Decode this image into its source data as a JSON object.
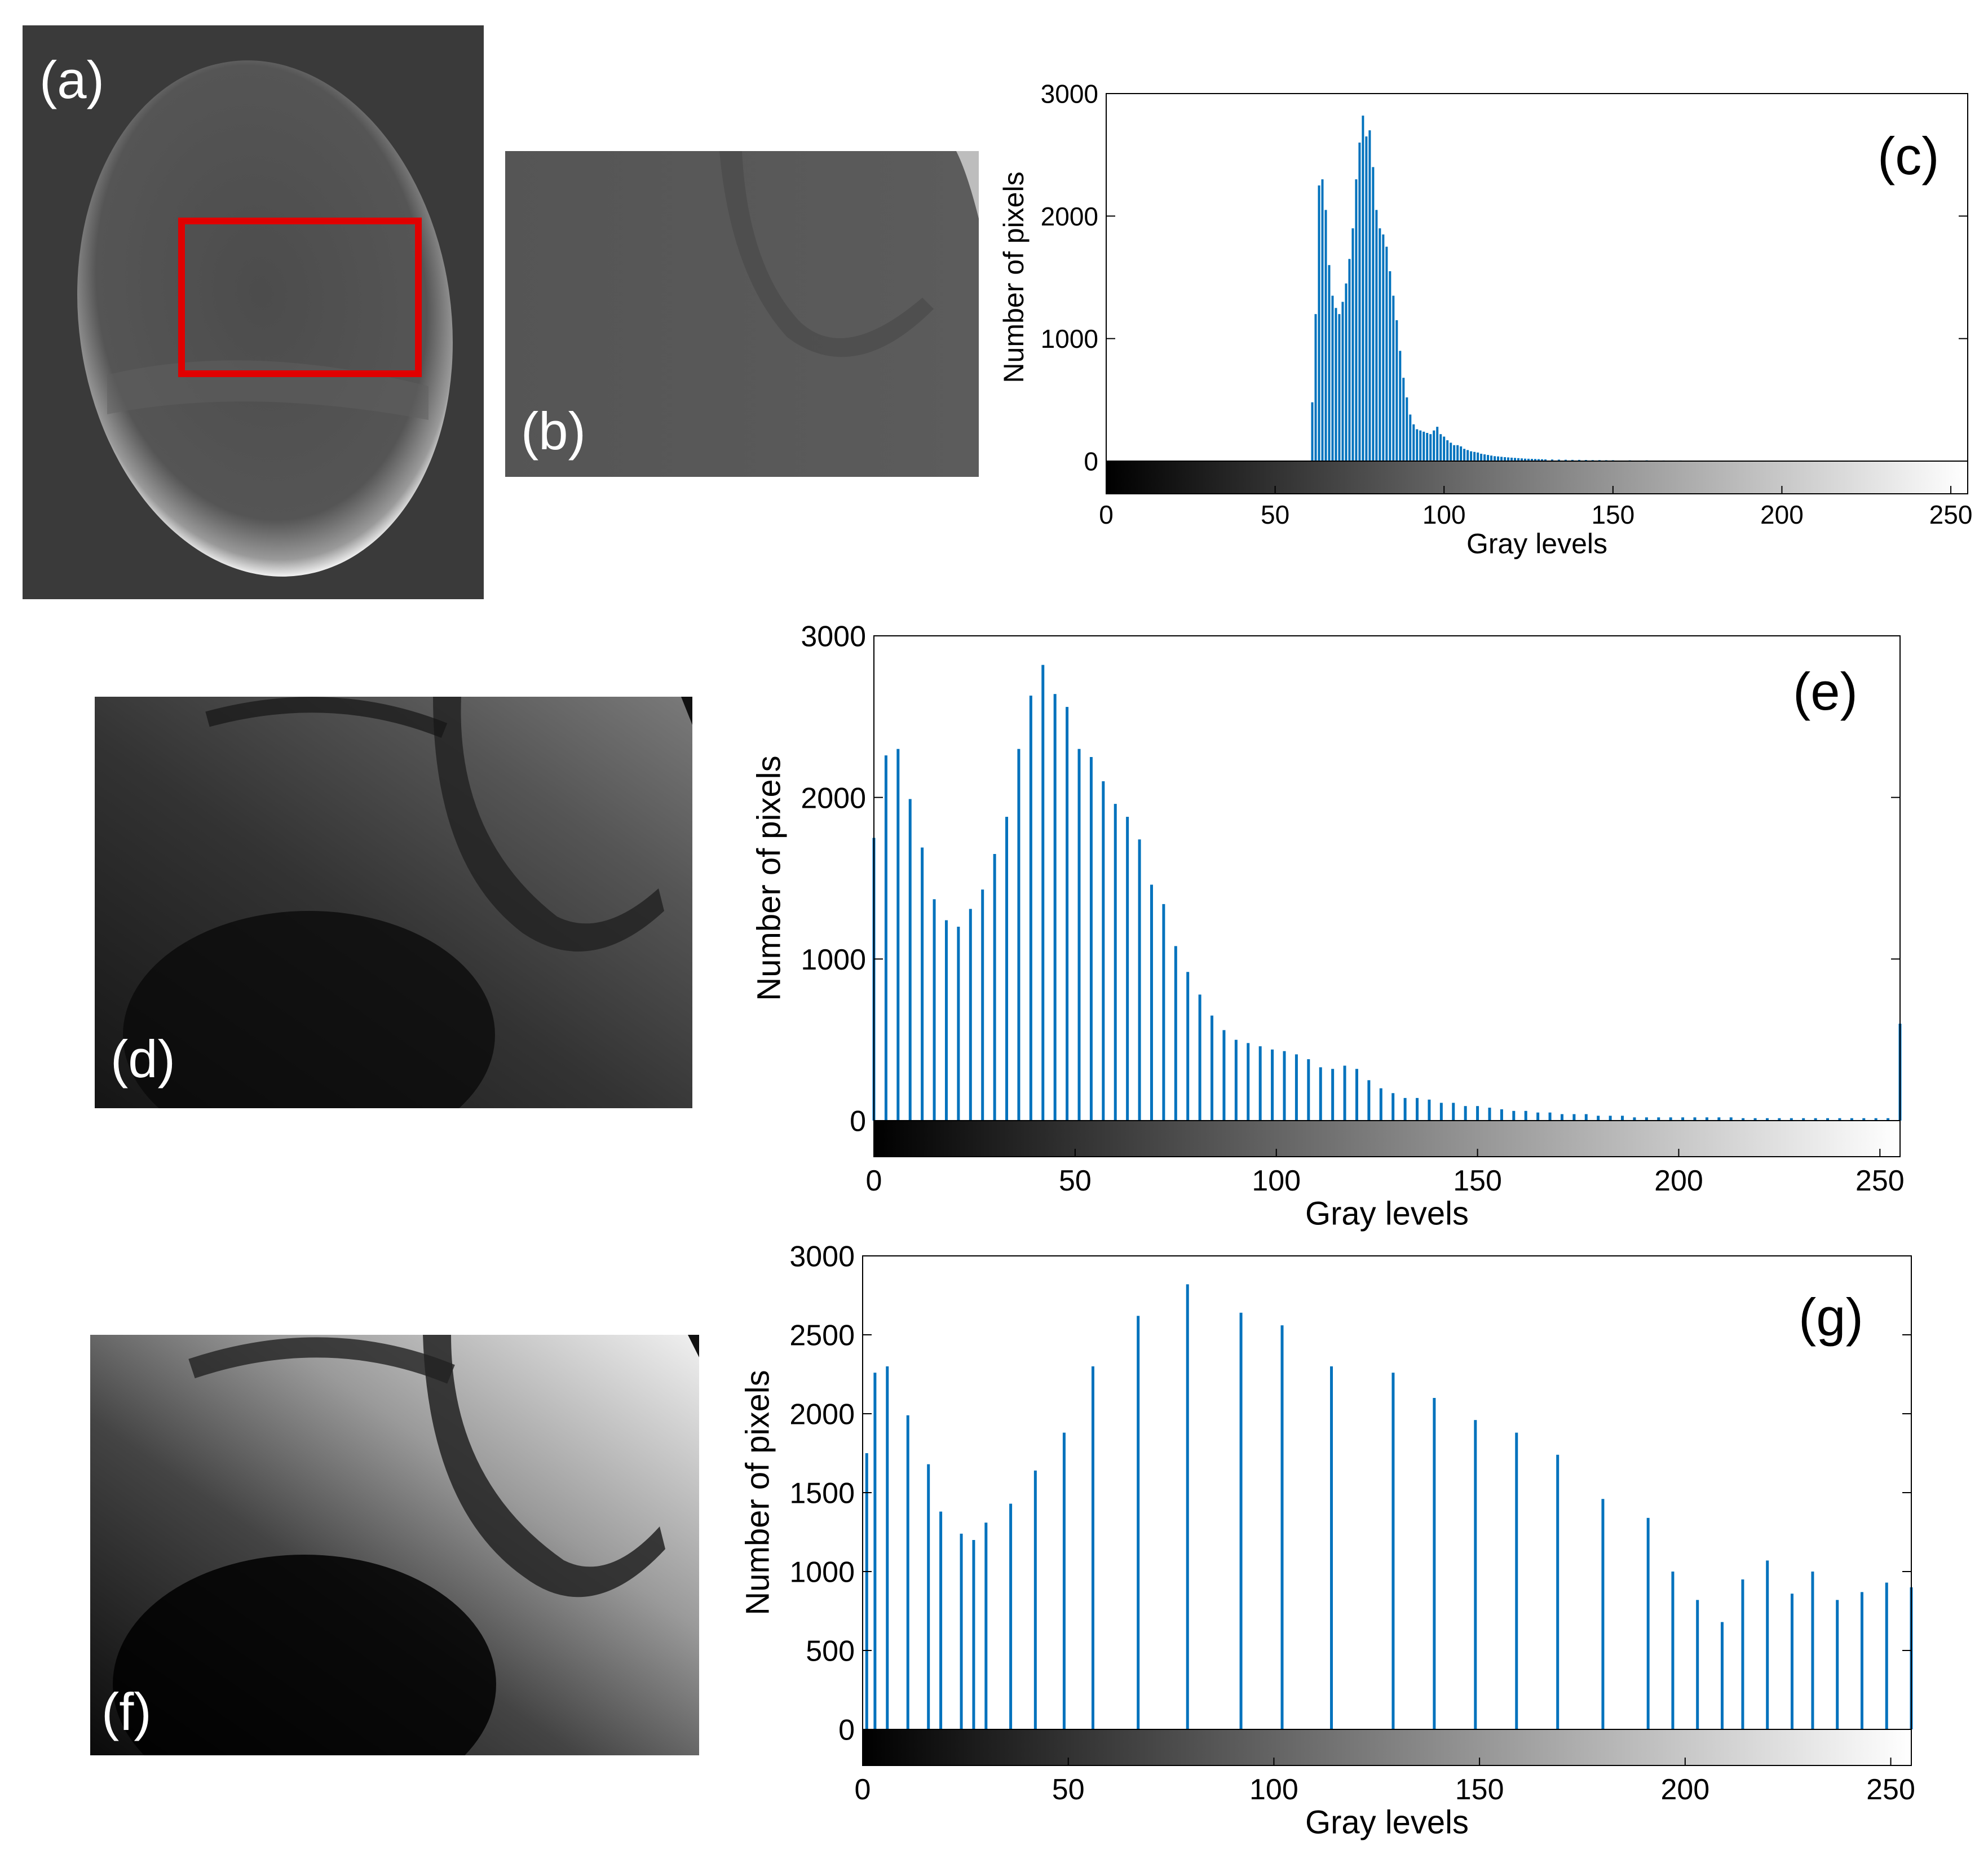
{
  "figure": {
    "panel_labels": {
      "a": "(a)",
      "b": "(b)",
      "c": "(c)",
      "d": "(d)",
      "e": "(e)",
      "f": "(f)",
      "g": "(g)"
    },
    "colors": {
      "bar": "#0072BD",
      "roi_box": "#e00000",
      "axis": "#000000"
    }
  },
  "chart_data": [
    {
      "panel": "(c)",
      "type": "bar",
      "xlabel": "Gray levels",
      "ylabel": "Number of pixels",
      "xlim": [
        0,
        255
      ],
      "ylim": [
        0,
        3000
      ],
      "xticks": [
        0,
        50,
        100,
        150,
        200,
        250
      ],
      "yticks": [
        0,
        1000,
        2000,
        3000
      ],
      "colorbar": "grayscale 0-255 below x-axis",
      "series": [
        {
          "x": [
            61,
            62,
            63,
            64,
            65,
            66,
            67,
            68,
            69,
            70,
            71,
            72,
            73,
            74,
            75,
            76,
            77,
            78,
            79,
            80,
            81,
            82,
            83,
            84,
            85,
            86,
            87,
            88,
            89,
            90,
            91,
            92,
            93,
            94,
            95,
            96,
            97,
            98,
            99,
            100,
            101,
            102,
            103,
            104,
            105,
            106,
            107,
            108,
            109,
            110,
            111,
            112,
            113,
            114,
            115,
            116,
            117,
            118,
            119,
            120,
            121,
            122,
            123,
            124,
            125,
            126,
            127,
            128,
            129,
            130,
            132,
            134,
            136,
            138,
            140,
            142,
            144,
            146,
            148,
            150,
            155,
            160,
            165,
            170,
            175,
            180,
            185,
            190,
            195
          ],
          "values": [
            480,
            1200,
            2250,
            2300,
            2050,
            1600,
            1350,
            1250,
            1200,
            1300,
            1450,
            1650,
            1900,
            2300,
            2600,
            2820,
            2650,
            2700,
            2400,
            2050,
            1900,
            1850,
            1750,
            1550,
            1350,
            1150,
            900,
            680,
            520,
            380,
            300,
            260,
            250,
            240,
            230,
            220,
            250,
            280,
            220,
            200,
            170,
            150,
            130,
            130,
            120,
            100,
            90,
            80,
            75,
            70,
            60,
            55,
            50,
            45,
            40,
            38,
            35,
            32,
            30,
            28,
            26,
            24,
            22,
            20,
            19,
            18,
            17,
            16,
            15,
            14,
            13,
            12,
            11,
            10,
            10,
            9,
            8,
            8,
            7,
            7,
            6,
            6,
            5,
            5,
            4,
            4,
            3,
            3,
            3
          ]
        }
      ]
    },
    {
      "panel": "(e)",
      "type": "bar",
      "xlabel": "Gray levels",
      "ylabel": "Number of pixels",
      "xlim": [
        0,
        255
      ],
      "ylim": [
        0,
        3000
      ],
      "xticks": [
        0,
        50,
        100,
        150,
        200,
        250
      ],
      "yticks": [
        0,
        1000,
        2000,
        3000
      ],
      "colorbar": "grayscale 0-255 below x-axis",
      "series": [
        {
          "x": [
            0,
            3,
            6,
            9,
            12,
            15,
            18,
            21,
            24,
            27,
            30,
            33,
            36,
            39,
            42,
            45,
            48,
            51,
            54,
            57,
            60,
            63,
            66,
            69,
            72,
            75,
            78,
            81,
            84,
            87,
            90,
            93,
            96,
            99,
            102,
            105,
            108,
            111,
            114,
            117,
            120,
            123,
            126,
            129,
            132,
            135,
            138,
            141,
            144,
            147,
            150,
            153,
            156,
            159,
            162,
            165,
            168,
            171,
            174,
            177,
            180,
            183,
            186,
            189,
            192,
            195,
            198,
            201,
            204,
            207,
            210,
            213,
            216,
            219,
            222,
            225,
            228,
            231,
            234,
            237,
            240,
            243,
            246,
            249,
            252,
            255
          ],
          "values": [
            1750,
            2260,
            2300,
            1990,
            1690,
            1370,
            1240,
            1200,
            1310,
            1430,
            1650,
            1880,
            2300,
            2630,
            2820,
            2640,
            2560,
            2300,
            2250,
            2100,
            1960,
            1880,
            1740,
            1460,
            1340,
            1080,
            920,
            780,
            650,
            560,
            500,
            480,
            460,
            440,
            430,
            410,
            380,
            330,
            320,
            340,
            320,
            250,
            200,
            170,
            140,
            140,
            130,
            110,
            110,
            90,
            90,
            80,
            70,
            60,
            60,
            50,
            50,
            40,
            40,
            40,
            30,
            30,
            30,
            20,
            20,
            20,
            20,
            20,
            20,
            20,
            20,
            20,
            15,
            15,
            15,
            15,
            15,
            15,
            15,
            15,
            15,
            15,
            15,
            15,
            15,
            600
          ]
        }
      ]
    },
    {
      "panel": "(g)",
      "type": "bar",
      "xlabel": "Gray levels",
      "ylabel": "Number of pixels",
      "xlim": [
        0,
        255
      ],
      "ylim": [
        0,
        3000
      ],
      "xticks": [
        0,
        50,
        100,
        150,
        200,
        250
      ],
      "yticks": [
        0,
        500,
        1000,
        1500,
        2000,
        2500,
        3000
      ],
      "colorbar": "grayscale 0-255 below x-axis",
      "series": [
        {
          "x": [
            1,
            3,
            6,
            11,
            16,
            19,
            24,
            27,
            30,
            36,
            42,
            49,
            56,
            67,
            79,
            92,
            102,
            114,
            129,
            139,
            149,
            159,
            169,
            180,
            191,
            197,
            203,
            209,
            214,
            220,
            226,
            231,
            237,
            243,
            249,
            255
          ],
          "values": [
            1750,
            2260,
            2300,
            1990,
            1680,
            1380,
            1240,
            1200,
            1310,
            1430,
            1640,
            1880,
            2300,
            2620,
            2820,
            2640,
            2560,
            2300,
            2260,
            2100,
            1960,
            1880,
            1740,
            1460,
            1340,
            1000,
            820,
            680,
            950,
            1070,
            860,
            1000,
            820,
            870,
            930,
            900
          ]
        }
      ]
    }
  ]
}
